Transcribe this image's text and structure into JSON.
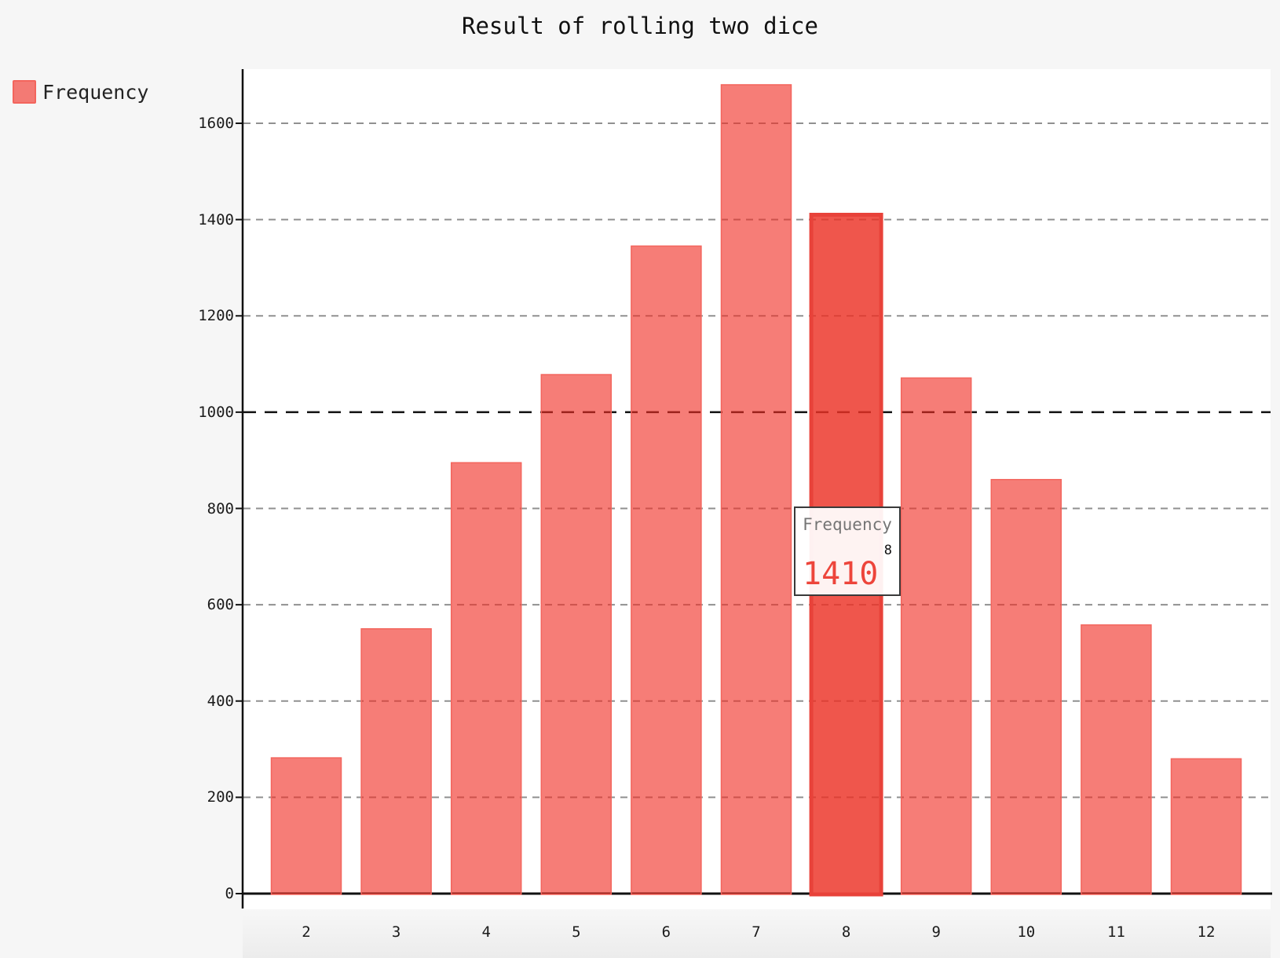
{
  "title": "Result of rolling two dice",
  "legend": {
    "label": "Frequency"
  },
  "tooltip": {
    "series_label": "Frequency",
    "x_label": "8",
    "value": "1410"
  },
  "y_axis_tick_labels": [
    "0",
    "200",
    "400",
    "600",
    "800",
    "1000",
    "1200",
    "1400",
    "1600"
  ],
  "x_axis_tick_labels": [
    "2",
    "3",
    "4",
    "5",
    "6",
    "7",
    "8",
    "9",
    "10",
    "11",
    "12"
  ],
  "chart_data": {
    "type": "bar",
    "title": "Result of rolling two dice",
    "categories": [
      "2",
      "3",
      "4",
      "5",
      "6",
      "7",
      "8",
      "9",
      "10",
      "11",
      "12"
    ],
    "series": [
      {
        "name": "Frequency",
        "values": [
          282,
          550,
          895,
          1078,
          1345,
          1680,
          1410,
          1071,
          860,
          558,
          280
        ]
      }
    ],
    "highlight": {
      "category": "8",
      "value": 1410,
      "tooltip_text": [
        "Frequency",
        "8",
        "1410"
      ]
    },
    "xlabel": "",
    "ylabel": "",
    "y_ticks": [
      0,
      200,
      400,
      600,
      800,
      1000,
      1200,
      1400,
      1600
    ],
    "major_y_tick": 1000,
    "ylim": [
      0,
      1712
    ],
    "grid": true,
    "grid_style": "dashed",
    "legend_position": "top-left",
    "colors": {
      "bar_fill": "rgba(240,45,35,0.62)",
      "bar_border": "#f3655d",
      "hover_fill": "rgba(235,49,36,0.82)",
      "hover_border": "#e8423a",
      "grid_minor": "#909090",
      "grid_major": "#111111",
      "axis": "#111111",
      "tick_text": "#1b1b1b",
      "tooltip_value": "#ed453b",
      "tooltip_series": "#757575",
      "page_background": "#f6f6f6",
      "plot_background": "#ffffff"
    }
  }
}
